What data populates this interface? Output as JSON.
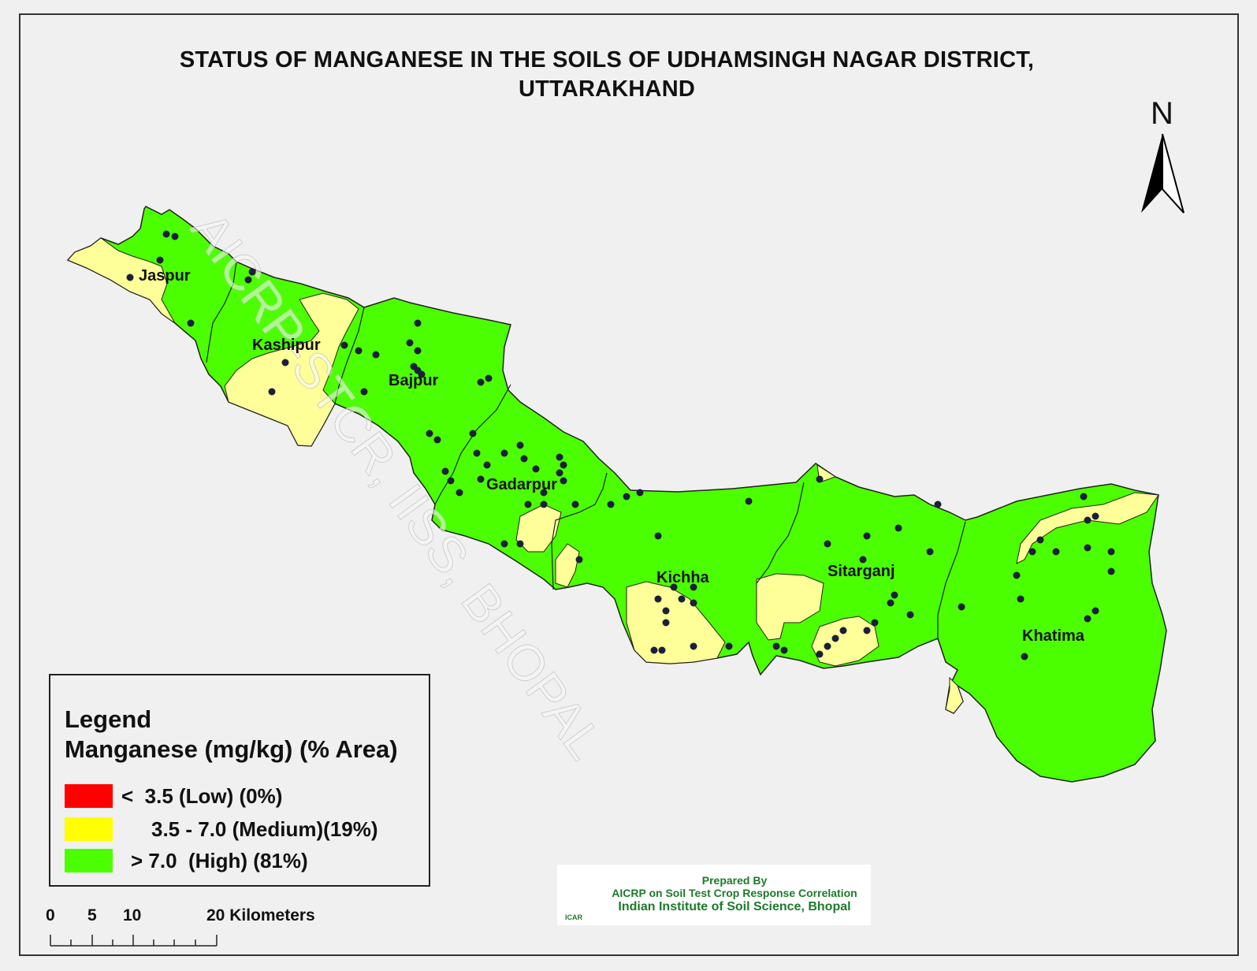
{
  "title_line1": "STATUS OF MANGANESE IN THE SOILS OF UDHAMSINGH NAGAR  DISTRICT,",
  "title_line2": "UTTARAKHAND",
  "north": "N",
  "watermark": "AICRP-STCR, IISS, BHOPAL",
  "places": [
    "Jaspur",
    "Kashipur",
    "Bajpur",
    "Gadarpur",
    "Kichha",
    "Sitarganj",
    "Khatima"
  ],
  "legend": {
    "heading": "Legend",
    "subheading": "Manganese (mg/kg) (% Area)",
    "items": [
      {
        "label": "<  3.5 (Low) (0%)",
        "color": "#ff0000"
      },
      {
        "label": "3.5 - 7.0 (Medium)(19%)",
        "color": "#ffff00"
      },
      {
        "label": "> 7.0  (High) (81%)",
        "color": "#4cff00"
      }
    ]
  },
  "scale": {
    "labels": [
      "0",
      "5",
      "10",
      "20 Kilometers"
    ]
  },
  "credits": {
    "line1": "Prepared By",
    "line2": "AICRP on Soil Test Crop Response Correlation",
    "line3": "Indian Institute of Soil Science, Bhopal",
    "logo_text": "ICAR"
  },
  "colors": {
    "high": "#4cff00",
    "medium": "#ffff99",
    "point": "#1a1f3a",
    "boundary": "#222222"
  }
}
